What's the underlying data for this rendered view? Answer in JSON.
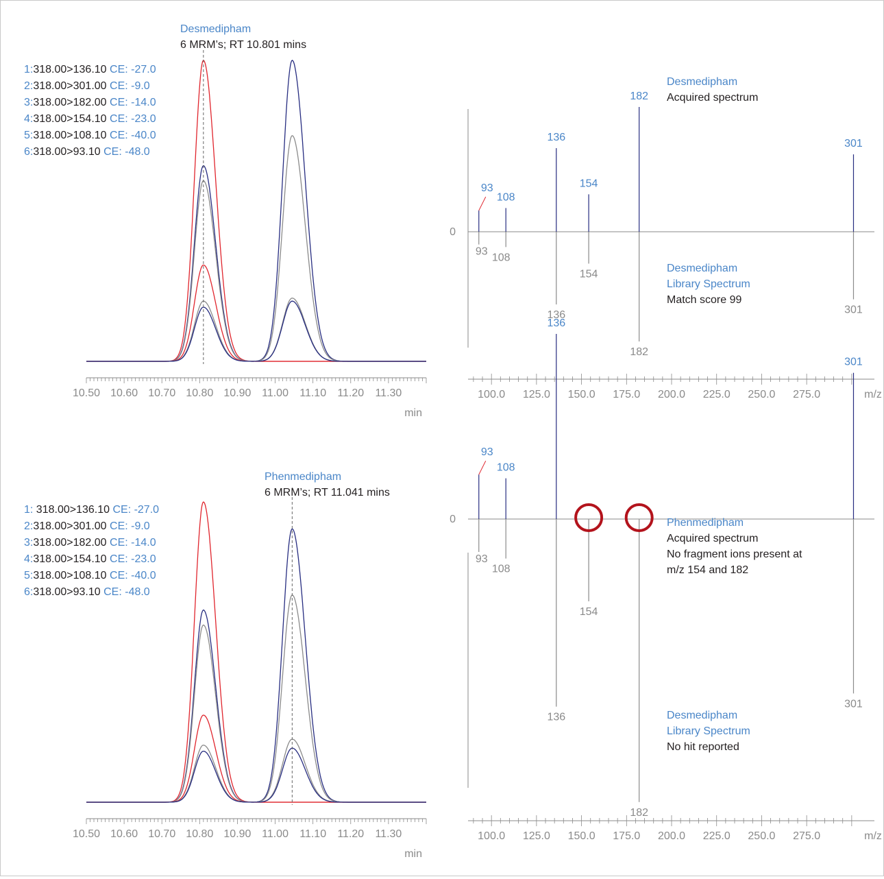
{
  "colors": {
    "blue_text": "#4a86c8",
    "dark_text": "#231f20",
    "trace_red": "#e0242c",
    "trace_navy": "#262c80",
    "trace_gray": "#8a8a8a",
    "axis": "#8a8a8a",
    "circle": "#b3131c"
  },
  "chart_data": [
    {
      "type": "line",
      "title": "Desmedipham",
      "subtitle": "6 MRM’s; RT 10.801 mins",
      "xlabel": "min",
      "xlim": [
        10.5,
        11.4
      ],
      "x_ticks": [
        "10.50",
        "10.60",
        "10.70",
        "10.80",
        "10.90",
        "11.00",
        "11.10",
        "11.20",
        "11.30"
      ],
      "rt_marker": 10.81,
      "legend": [
        {
          "num": "1:",
          "trans": "318.00>136.10",
          "ce": "CE: -27.0"
        },
        {
          "num": "2:",
          "trans": "318.00>301.00",
          "ce": "CE: -9.0"
        },
        {
          "num": "3:",
          "trans": "318.00>182.00",
          "ce": "CE: -14.0"
        },
        {
          "num": "4:",
          "trans": "318.00>154.10",
          "ce": "CE: -23.0"
        },
        {
          "num": "5:",
          "trans": "318.00>108.10",
          "ce": "CE: -40.0"
        },
        {
          "num": "6:",
          "trans": "318.00>93.10",
          "ce": "CE: -48.0"
        }
      ],
      "peaks_rt": [
        10.81,
        11.045
      ],
      "series": [
        {
          "color": "red",
          "heights": [
            1.0,
            0.0
          ]
        },
        {
          "color": "navy",
          "heights": [
            0.65,
            1.0
          ]
        },
        {
          "color": "gray",
          "heights": [
            0.6,
            0.75
          ]
        },
        {
          "color": "red",
          "heights": [
            0.32,
            0.0
          ]
        },
        {
          "color": "gray",
          "heights": [
            0.2,
            0.21
          ]
        },
        {
          "color": "navy",
          "heights": [
            0.18,
            0.2
          ]
        }
      ]
    },
    {
      "type": "bar",
      "title": "Desmedipham",
      "upper_text": [
        "Acquired spectrum"
      ],
      "lower_title": [
        "Desmedipham",
        "Library Spectrum"
      ],
      "lower_text": [
        "Match score 99"
      ],
      "xlabel": "m/z",
      "xlim": [
        87,
        305
      ],
      "x_ticks": [
        "100.0",
        "125.0",
        "150.0",
        "175.0",
        "200.0",
        "225.0",
        "250.0",
        "275.0"
      ],
      "zero_label": "0",
      "acquired": [
        {
          "mz": 93,
          "label": "93",
          "value": 0.17
        },
        {
          "mz": 108,
          "label": "108",
          "value": 0.19
        },
        {
          "mz": 136,
          "label": "136",
          "value": 0.67
        },
        {
          "mz": 154,
          "label": "154",
          "value": 0.3
        },
        {
          "mz": 182,
          "label": "182",
          "value": 1.0
        },
        {
          "mz": 301,
          "label": "301",
          "value": 0.62
        }
      ],
      "library": [
        {
          "mz": 93,
          "label": "93",
          "value": 0.1
        },
        {
          "mz": 108,
          "label": "108",
          "value": 0.12
        },
        {
          "mz": 136,
          "label": "136",
          "value": 0.57
        },
        {
          "mz": 154,
          "label": "154",
          "value": 0.25
        },
        {
          "mz": 182,
          "label": "182",
          "value": 0.86
        },
        {
          "mz": 301,
          "label": "301",
          "value": 0.53
        }
      ],
      "circles": []
    },
    {
      "type": "line",
      "title": "Phenmedipham",
      "subtitle": "6 MRM’s; RT 11.041 mins",
      "xlabel": "min",
      "xlim": [
        10.5,
        11.4
      ],
      "x_ticks": [
        "10.50",
        "10.60",
        "10.70",
        "10.80",
        "10.90",
        "11.00",
        "11.10",
        "11.20",
        "11.30"
      ],
      "rt_marker": 11.045,
      "legend": [
        {
          "num": "1: ",
          "trans": "318.00>136.10",
          "ce": "CE: -27.0"
        },
        {
          "num": "2:",
          "trans": "318.00>301.00",
          "ce": "CE: -9.0"
        },
        {
          "num": "3:",
          "trans": "318.00>182.00",
          "ce": "CE: -14.0"
        },
        {
          "num": "4:",
          "trans": "318.00>154.10",
          "ce": "CE: -23.0"
        },
        {
          "num": "5:",
          "trans": "318.00>108.10",
          "ce": "CE: -40.0"
        },
        {
          "num": "6:",
          "trans": "318.00>93.10",
          "ce": "CE: -48.0"
        }
      ],
      "peaks_rt": [
        10.81,
        11.045
      ],
      "series": [
        {
          "color": "red",
          "heights": [
            1.0,
            0.0
          ]
        },
        {
          "color": "navy",
          "heights": [
            0.64,
            0.91
          ]
        },
        {
          "color": "gray",
          "heights": [
            0.59,
            0.69
          ]
        },
        {
          "color": "red",
          "heights": [
            0.29,
            0.0
          ]
        },
        {
          "color": "gray",
          "heights": [
            0.19,
            0.21
          ]
        },
        {
          "color": "navy",
          "heights": [
            0.17,
            0.18
          ]
        }
      ]
    },
    {
      "type": "bar",
      "title": "Phenmedipham",
      "upper_text": [
        "Acquired spectrum",
        "No fragment ions present at",
        "m/z 154 and 182"
      ],
      "lower_title": [
        "Desmedipham",
        "Library Spectrum"
      ],
      "lower_text": [
        "No hit reported"
      ],
      "xlabel": "m/z",
      "xlim": [
        87,
        305
      ],
      "x_ticks": [
        "100.0",
        "125.0",
        "150.0",
        "175.0",
        "200.0",
        "225.0",
        "250.0",
        "275.0"
      ],
      "zero_label": "0",
      "acquired": [
        {
          "mz": 93,
          "label": "93",
          "value": 0.24
        },
        {
          "mz": 108,
          "label": "108",
          "value": 0.22
        },
        {
          "mz": 136,
          "label": "136",
          "value": 1.0
        },
        {
          "mz": 301,
          "label": "301",
          "value": 0.79
        }
      ],
      "library": [
        {
          "mz": 93,
          "label": "93",
          "value": 0.1
        },
        {
          "mz": 108,
          "label": "108",
          "value": 0.12
        },
        {
          "mz": 136,
          "label": "136",
          "value": 0.57
        },
        {
          "mz": 154,
          "label": "154",
          "value": 0.25
        },
        {
          "mz": 182,
          "label": "182",
          "value": 0.86
        },
        {
          "mz": 301,
          "label": "301",
          "value": 0.53
        }
      ],
      "circles": [
        154,
        182
      ]
    }
  ]
}
